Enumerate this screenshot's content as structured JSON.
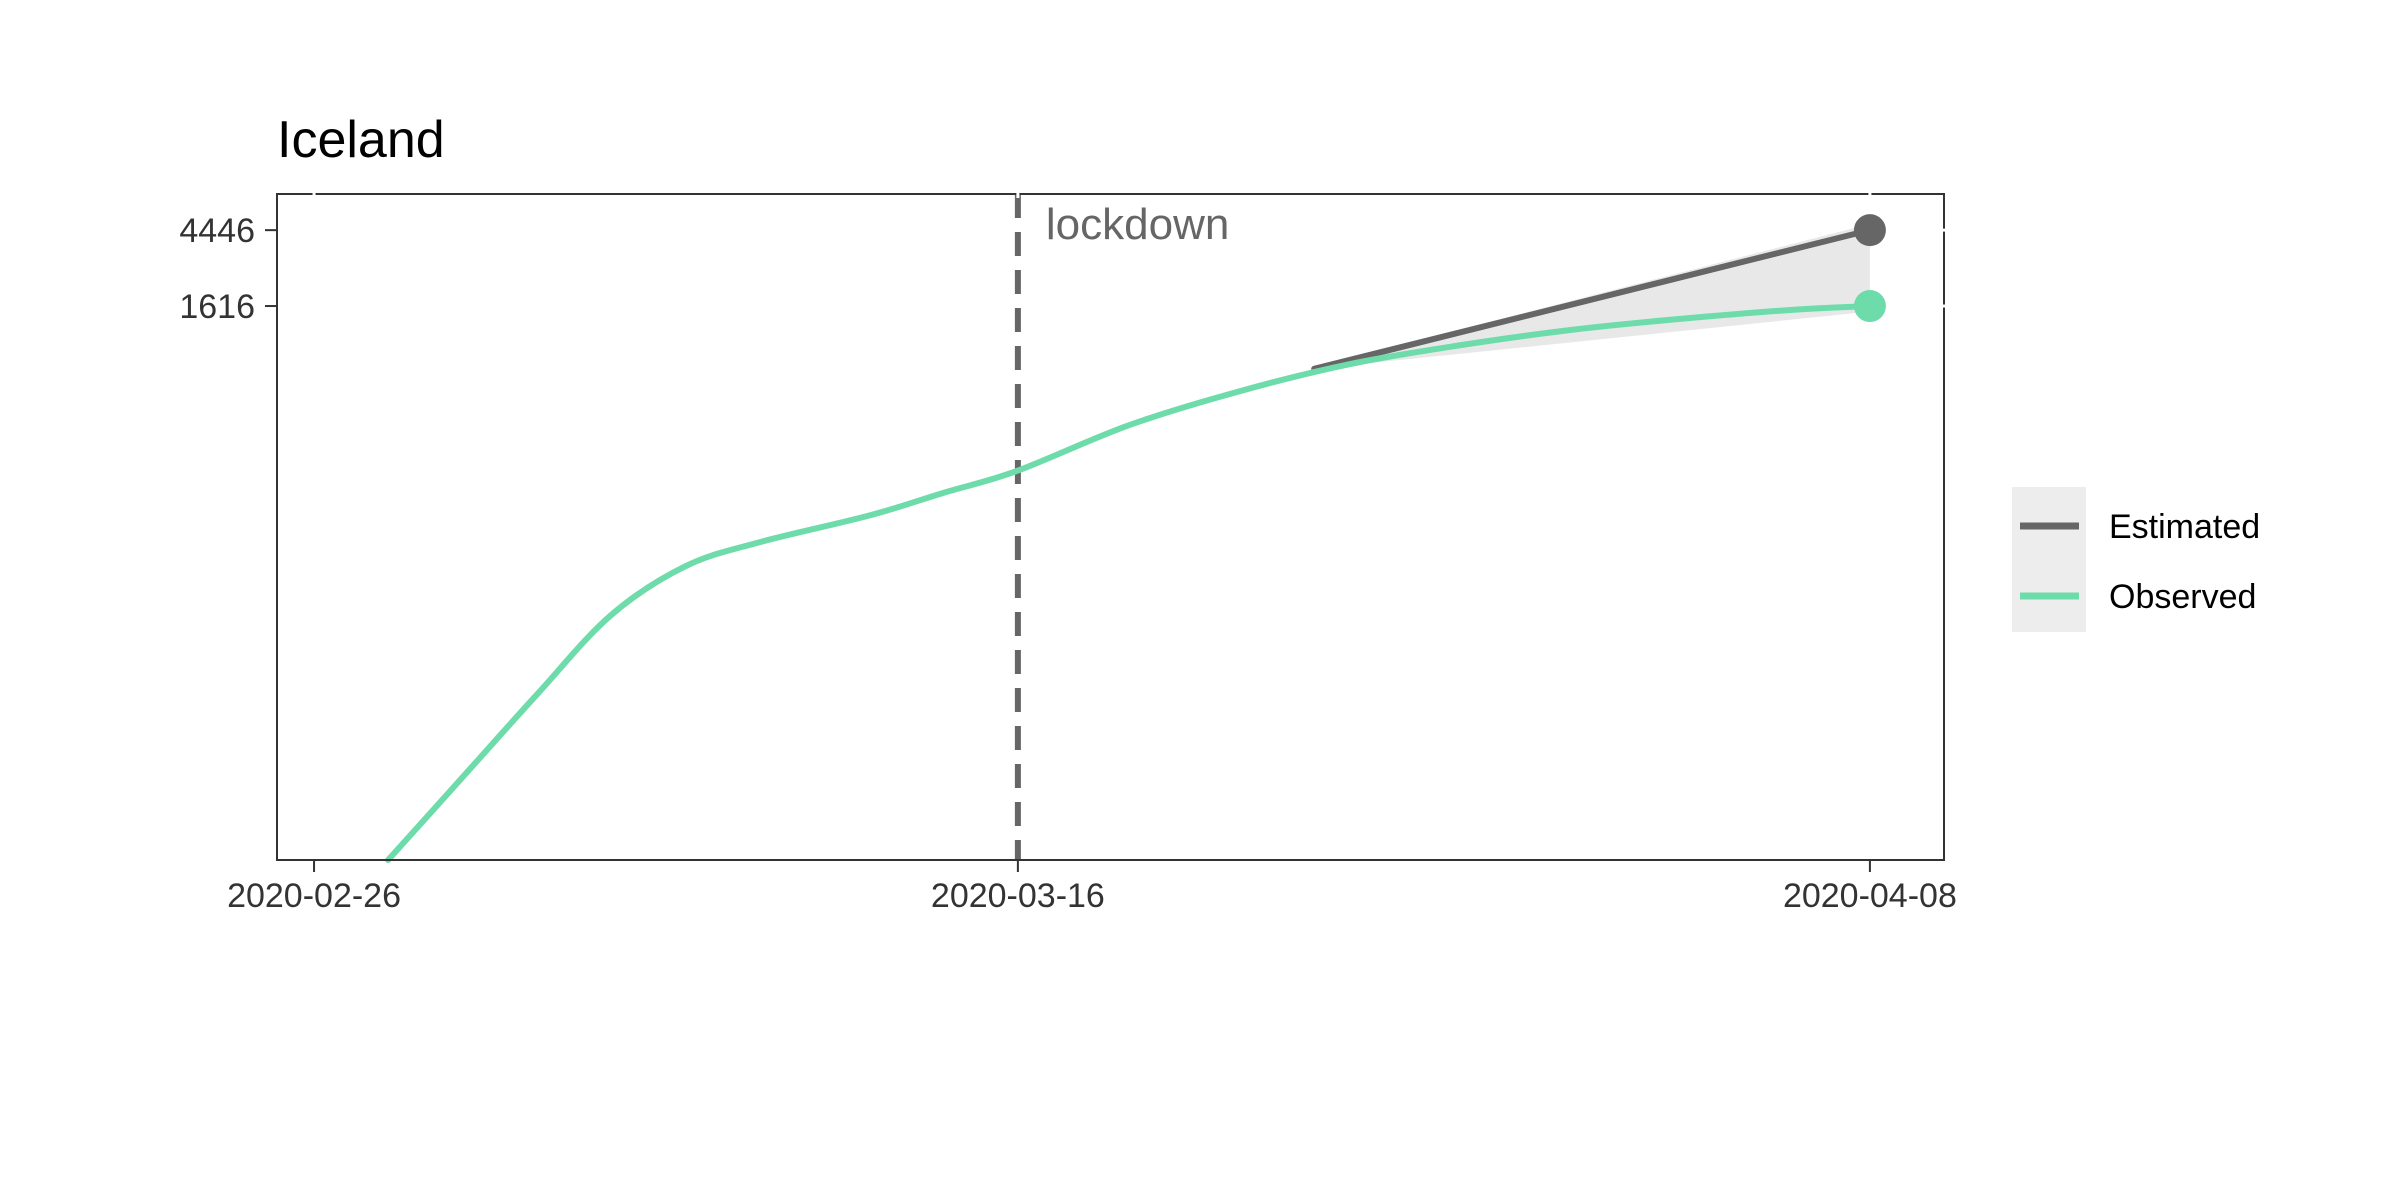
{
  "chart_data": {
    "type": "line",
    "title": "Iceland",
    "xlabel": "",
    "ylabel": "",
    "scale_y": "log",
    "grid": false,
    "legend_position": "right",
    "x_ticks": [
      "2020-02-26",
      "2020-03-16",
      "2020-04-08"
    ],
    "y_ticks": [
      4446,
      1616
    ],
    "xlim": [
      "2020-02-25",
      "2020-04-10"
    ],
    "ylim": [
      1,
      7200
    ],
    "annotations": [
      {
        "label": "lockdown",
        "x": "2020-03-16",
        "style": "dashed-vline"
      }
    ],
    "series": [
      {
        "name": "Estimated",
        "color": "#666666",
        "points": [
          {
            "x": "2020-03-24",
            "y": 700
          },
          {
            "x": "2020-04-08",
            "y": 4446
          }
        ],
        "band": {
          "color": "#e8e8e8",
          "points": [
            {
              "x": "2020-03-24",
              "lo": 700,
              "hi": 720
            },
            {
              "x": "2020-04-08",
              "lo": 1500,
              "hi": 8500
            }
          ]
        },
        "endpoint_marker": true
      },
      {
        "name": "Observed",
        "color": "#6ddcaa",
        "points": [
          {
            "x": "2020-02-28",
            "y": 1
          },
          {
            "x": "2020-03-01",
            "y": 3
          },
          {
            "x": "2020-03-03",
            "y": 9
          },
          {
            "x": "2020-03-05",
            "y": 26
          },
          {
            "x": "2020-03-07",
            "y": 50
          },
          {
            "x": "2020-03-09",
            "y": 69
          },
          {
            "x": "2020-03-12",
            "y": 99
          },
          {
            "x": "2020-03-14",
            "y": 134
          },
          {
            "x": "2020-03-16",
            "y": 180
          },
          {
            "x": "2020-03-19",
            "y": 330
          },
          {
            "x": "2020-03-22",
            "y": 520
          },
          {
            "x": "2020-03-25",
            "y": 748
          },
          {
            "x": "2020-03-28",
            "y": 962
          },
          {
            "x": "2020-03-31",
            "y": 1181
          },
          {
            "x": "2020-04-03",
            "y": 1368
          },
          {
            "x": "2020-04-06",
            "y": 1540
          },
          {
            "x": "2020-04-08",
            "y": 1616
          }
        ],
        "endpoint_marker": true
      }
    ]
  }
}
